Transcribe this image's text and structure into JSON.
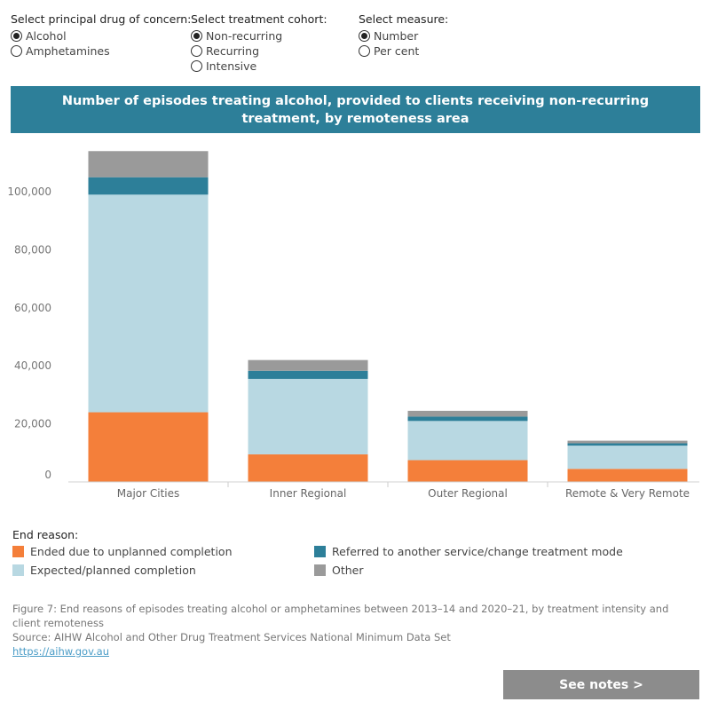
{
  "filters": {
    "drug": {
      "title": "Select principal drug of concern:",
      "options": [
        "Alcohol",
        "Amphetamines"
      ],
      "selected": 0
    },
    "cohort": {
      "title": "Select treatment cohort:",
      "options": [
        "Non-recurring",
        "Recurring",
        "Intensive"
      ],
      "selected": 0
    },
    "measure": {
      "title": "Select measure:",
      "options": [
        "Number",
        "Per cent"
      ],
      "selected": 0
    }
  },
  "banner": {
    "title": "Number of episodes treating alcohol, provided to clients receiving non-recurring treatment, by remoteness area"
  },
  "chart_data": {
    "type": "bar",
    "stacked": true,
    "categories": [
      "Major Cities",
      "Inner Regional",
      "Outer Regional",
      "Remote & Very Remote"
    ],
    "series": [
      {
        "name": "Ended due to unplanned completion",
        "color": "#f47f3a",
        "values": [
          24000,
          9500,
          7500,
          4500
        ]
      },
      {
        "name": "Expected/planned completion",
        "color": "#b8d8e2",
        "values": [
          75000,
          26000,
          13500,
          8000
        ]
      },
      {
        "name": "Referred to another service/change treatment mode",
        "color": "#2d7f99",
        "values": [
          6000,
          2800,
          1500,
          800
        ]
      },
      {
        "name": "Other",
        "color": "#9a9a9a",
        "values": [
          9000,
          3700,
          2000,
          900
        ]
      }
    ],
    "yticks": [
      "0",
      "20,000",
      "40,000",
      "60,000",
      "80,000",
      "100,000"
    ],
    "ylim": [
      0,
      115000
    ],
    "grid": false
  },
  "legend": {
    "title": "End reason:",
    "items": [
      {
        "label": "Ended due to unplanned completion",
        "color": "#f47f3a"
      },
      {
        "label": "Referred to another service/change treatment mode",
        "color": "#2d7f99"
      },
      {
        "label": "Expected/planned completion",
        "color": "#b8d8e2"
      },
      {
        "label": "Other",
        "color": "#9a9a9a"
      }
    ]
  },
  "caption": {
    "figure": "Figure 7: End reasons of episodes treating alcohol or amphetamines between 2013–14 and 2020–21, by treatment intensity and client remoteness",
    "source": "Source: AIHW Alcohol and Other Drug Treatment Services National Minimum Data Set",
    "link": "https://aihw.gov.au"
  },
  "notes_button": "See notes >"
}
